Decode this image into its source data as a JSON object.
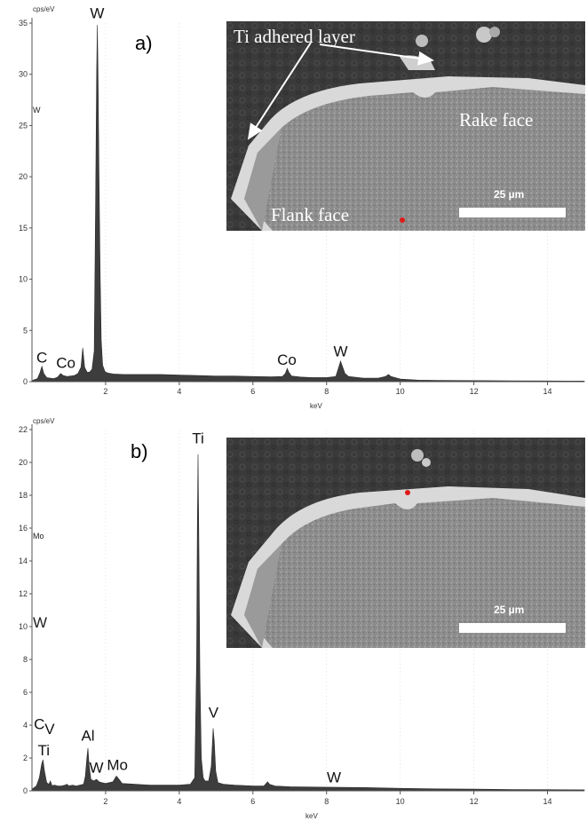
{
  "chart_data": [
    {
      "type": "area",
      "panel_label": "a)",
      "ylabel": "cps/eV",
      "xlabel": "keV",
      "xlim": [
        0,
        15
      ],
      "ylim": [
        0,
        35
      ],
      "x_ticks": [
        2,
        4,
        6,
        8,
        10,
        12,
        14
      ],
      "y_ticks": [
        0,
        5,
        10,
        15,
        20,
        25,
        30,
        35
      ],
      "series": [
        {
          "points": [
            [
              0.0,
              0.1
            ],
            [
              0.15,
              0.3
            ],
            [
              0.22,
              0.9
            ],
            [
              0.27,
              1.5
            ],
            [
              0.32,
              0.8
            ],
            [
              0.4,
              0.4
            ],
            [
              0.5,
              0.35
            ],
            [
              0.6,
              0.3
            ],
            [
              0.7,
              0.45
            ],
            [
              0.78,
              0.8
            ],
            [
              0.85,
              0.6
            ],
            [
              0.95,
              0.5
            ],
            [
              1.05,
              0.55
            ],
            [
              1.15,
              0.6
            ],
            [
              1.25,
              0.8
            ],
            [
              1.33,
              1.4
            ],
            [
              1.38,
              3.3
            ],
            [
              1.43,
              1.4
            ],
            [
              1.5,
              0.9
            ],
            [
              1.57,
              0.95
            ],
            [
              1.63,
              1.2
            ],
            [
              1.69,
              3.0
            ],
            [
              1.73,
              18.0
            ],
            [
              1.755,
              30.0
            ],
            [
              1.775,
              34.8
            ],
            [
              1.795,
              30.0
            ],
            [
              1.82,
              20.0
            ],
            [
              1.85,
              11.0
            ],
            [
              1.88,
              4.0
            ],
            [
              1.92,
              1.6
            ],
            [
              1.98,
              1.0
            ],
            [
              2.05,
              0.85
            ],
            [
              2.2,
              0.75
            ],
            [
              2.5,
              0.7
            ],
            [
              3.0,
              0.7
            ],
            [
              3.5,
              0.7
            ],
            [
              4.0,
              0.65
            ],
            [
              4.5,
              0.6
            ],
            [
              5.0,
              0.55
            ],
            [
              5.5,
              0.55
            ],
            [
              6.0,
              0.5
            ],
            [
              6.5,
              0.48
            ],
            [
              6.8,
              0.5
            ],
            [
              6.88,
              0.8
            ],
            [
              6.93,
              1.3
            ],
            [
              6.98,
              0.9
            ],
            [
              7.05,
              0.55
            ],
            [
              7.3,
              0.45
            ],
            [
              7.6,
              0.4
            ],
            [
              8.0,
              0.4
            ],
            [
              8.25,
              0.5
            ],
            [
              8.33,
              1.4
            ],
            [
              8.38,
              2.0
            ],
            [
              8.42,
              1.6
            ],
            [
              8.5,
              0.8
            ],
            [
              8.6,
              0.5
            ],
            [
              9.0,
              0.35
            ],
            [
              9.4,
              0.35
            ],
            [
              9.6,
              0.5
            ],
            [
              9.68,
              0.7
            ],
            [
              9.75,
              0.5
            ],
            [
              10.0,
              0.25
            ],
            [
              10.5,
              0.15
            ],
            [
              11.0,
              0.12
            ],
            [
              12.0,
              0.1
            ],
            [
              13.0,
              0.08
            ],
            [
              14.0,
              0.07
            ],
            [
              15.0,
              0.06
            ]
          ]
        }
      ],
      "peak_labels": [
        {
          "text": "W",
          "x": 1.77,
          "y": 35.2
        },
        {
          "text": "C",
          "x": 0.27,
          "y": 1.6
        },
        {
          "text": "Co",
          "x": 0.92,
          "y": 1.1
        },
        {
          "text": "Co",
          "x": 6.92,
          "y": 1.4
        },
        {
          "text": "W",
          "x": 8.38,
          "y": 2.2
        }
      ],
      "side_label": "W",
      "inset": {
        "label_ti": "Ti adhered layer",
        "label_rake": "Rake face",
        "label_flank": "Flank face",
        "scalebar": "25 µm"
      }
    },
    {
      "type": "area",
      "panel_label": "b)",
      "ylabel": "cps/eV",
      "xlabel": "keV",
      "xlim": [
        0,
        15
      ],
      "ylim": [
        0,
        22
      ],
      "x_ticks": [
        2,
        4,
        6,
        8,
        10,
        12,
        14
      ],
      "y_ticks": [
        0,
        2,
        4,
        6,
        8,
        10,
        12,
        14,
        16,
        18,
        20,
        22
      ],
      "series": [
        {
          "points": [
            [
              0.0,
              0.1
            ],
            [
              0.12,
              0.3
            ],
            [
              0.2,
              0.8
            ],
            [
              0.26,
              1.6
            ],
            [
              0.3,
              1.9
            ],
            [
              0.34,
              1.2
            ],
            [
              0.4,
              0.5
            ],
            [
              0.46,
              0.4
            ],
            [
              0.5,
              0.6
            ],
            [
              0.55,
              0.3
            ],
            [
              0.6,
              0.35
            ],
            [
              0.7,
              0.3
            ],
            [
              0.8,
              0.3
            ],
            [
              0.9,
              0.35
            ],
            [
              0.95,
              0.4
            ],
            [
              1.0,
              0.3
            ],
            [
              1.1,
              0.35
            ],
            [
              1.2,
              0.3
            ],
            [
              1.3,
              0.35
            ],
            [
              1.4,
              0.4
            ],
            [
              1.45,
              0.9
            ],
            [
              1.49,
              2.0
            ],
            [
              1.52,
              2.6
            ],
            [
              1.55,
              1.6
            ],
            [
              1.6,
              0.7
            ],
            [
              1.68,
              0.6
            ],
            [
              1.75,
              0.7
            ],
            [
              1.82,
              0.55
            ],
            [
              1.9,
              0.5
            ],
            [
              2.0,
              0.45
            ],
            [
              2.2,
              0.55
            ],
            [
              2.29,
              0.9
            ],
            [
              2.33,
              0.8
            ],
            [
              2.45,
              0.45
            ],
            [
              2.8,
              0.4
            ],
            [
              3.2,
              0.35
            ],
            [
              3.6,
              0.35
            ],
            [
              4.0,
              0.35
            ],
            [
              4.3,
              0.4
            ],
            [
              4.42,
              0.8
            ],
            [
              4.47,
              8.0
            ],
            [
              4.49,
              16.0
            ],
            [
              4.51,
              20.5
            ],
            [
              4.53,
              16.0
            ],
            [
              4.56,
              7.0
            ],
            [
              4.6,
              2.0
            ],
            [
              4.65,
              0.8
            ],
            [
              4.7,
              0.6
            ],
            [
              4.8,
              0.6
            ],
            [
              4.87,
              1.5
            ],
            [
              4.92,
              3.8
            ],
            [
              4.95,
              3.0
            ],
            [
              4.99,
              1.2
            ],
            [
              5.05,
              0.5
            ],
            [
              5.2,
              0.4
            ],
            [
              5.5,
              0.35
            ],
            [
              6.0,
              0.3
            ],
            [
              6.3,
              0.3
            ],
            [
              6.4,
              0.55
            ],
            [
              6.45,
              0.4
            ],
            [
              6.6,
              0.3
            ],
            [
              7.0,
              0.25
            ],
            [
              8.0,
              0.22
            ],
            [
              9.0,
              0.2
            ],
            [
              10.0,
              0.15
            ],
            [
              11.0,
              0.12
            ],
            [
              12.0,
              0.1
            ],
            [
              13.0,
              0.08
            ],
            [
              14.0,
              0.07
            ],
            [
              15.0,
              0.06
            ]
          ]
        }
      ],
      "peak_labels": [
        {
          "text": "Ti",
          "x": 4.51,
          "y": 21.0
        },
        {
          "text": "V",
          "x": 4.93,
          "y": 4.3
        },
        {
          "text": "C",
          "x": 0.2,
          "y": 3.6
        },
        {
          "text": "V",
          "x": 0.48,
          "y": 3.3
        },
        {
          "text": "Ti",
          "x": 0.32,
          "y": 2.0
        },
        {
          "text": "Al",
          "x": 1.52,
          "y": 2.9
        },
        {
          "text": "W",
          "x": 1.75,
          "y": 0.95
        },
        {
          "text": "Mo",
          "x": 2.32,
          "y": 1.1
        },
        {
          "text": "W",
          "x": 8.2,
          "y": 0.35
        }
      ],
      "side_label_top": "Mo",
      "side_label": "W",
      "inset": {
        "scalebar": "25 µm"
      }
    }
  ]
}
